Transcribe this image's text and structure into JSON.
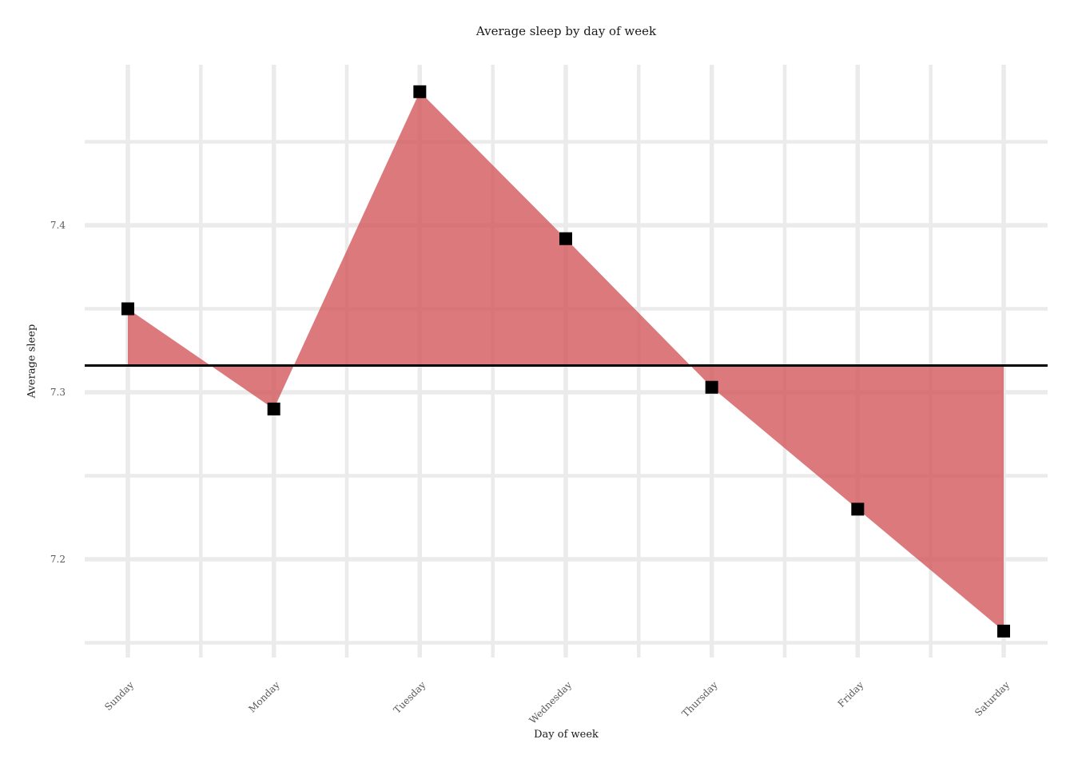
{
  "chart_data": {
    "type": "area",
    "title": "Average sleep by day of week",
    "xlabel": "Day of week",
    "ylabel": "Average sleep",
    "categories": [
      "Sunday",
      "Monday",
      "Tuesday",
      "Wednesday",
      "Thursday",
      "Friday",
      "Saturday"
    ],
    "series": [
      {
        "name": "Average sleep",
        "values": [
          7.35,
          7.29,
          7.48,
          7.392,
          7.303,
          7.23,
          7.157
        ]
      }
    ],
    "reference_line": 7.316,
    "y_tick_labels": [
      "7.4",
      "7.3",
      "7.2"
    ],
    "y_ticks_major": [
      7.4,
      7.3,
      7.2
    ],
    "y_ticks_minor": [
      7.45,
      7.35,
      7.25,
      7.15
    ],
    "ylim": [
      7.141,
      7.496
    ],
    "grid": "major+minor",
    "legend": "none",
    "marker": "black-square",
    "colors": {
      "fill": "#D2585B",
      "fill_opacity": 0.8,
      "marker": "#000000",
      "reference_line": "#000000",
      "gridline": "#EBEBEB",
      "tick_label": "#595959",
      "text": "#1A1A1A",
      "background": "#FFFFFF"
    }
  }
}
